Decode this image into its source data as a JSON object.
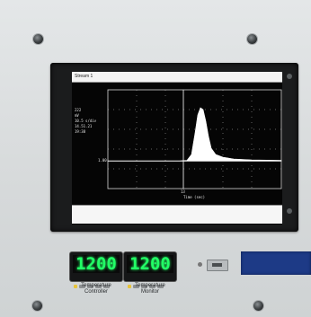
{
  "screen": {
    "window_title": "Stream 1",
    "side_readout": [
      "222",
      "mV",
      "10.5 s/div",
      "14.51.21",
      "19:38"
    ],
    "y_marker": "1.00",
    "x_marker": "13",
    "x_axis_label": "Time (sec)"
  },
  "controllers": [
    {
      "display": "1200",
      "label_line1": "Temperature",
      "label_line2": "Controller"
    },
    {
      "display": "1200",
      "label_line1": "Temperature",
      "label_line2": "Monitor"
    }
  ],
  "colors": {
    "lcd_digits": "#22ff66",
    "trace": "#ffffff",
    "blue_panel": "#1d3a86"
  },
  "icons": [
    "screw-icon",
    "toggle-switch-icon"
  ]
}
